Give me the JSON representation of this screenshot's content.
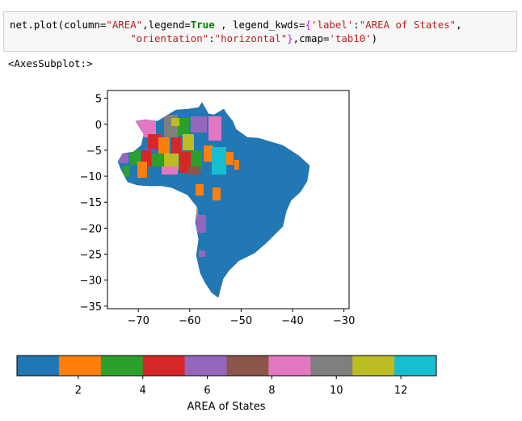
{
  "code_cell": {
    "line1": {
      "t1": "net.plot(column=",
      "s1": "\"AREA\"",
      "t2": ",legend=",
      "k1": "True",
      "t3": " , legend_kwds=",
      "o1": "{",
      "s2": "'label'",
      "t4": ":",
      "s3": "\"AREA of States\"",
      "t5": ","
    },
    "line2": {
      "indent": "                    ",
      "s4": "\"orientation\"",
      "t6": ":",
      "s5": "\"horizontal\"",
      "o2": "}",
      "t7": ",cmap=",
      "s6": "'tab10'",
      "t8": ")"
    }
  },
  "output_text": "<AxesSubplot:>",
  "chart_data": {
    "type": "choropleth map",
    "xlim": [
      -76,
      -29
    ],
    "ylim": [
      -35.5,
      6.5
    ],
    "x_ticks": [
      -70,
      -60,
      -50,
      -40,
      -30
    ],
    "x_tick_labels": [
      "−70",
      "−60",
      "−50",
      "−40",
      "−30"
    ],
    "y_ticks": [
      5,
      0,
      -5,
      -10,
      -15,
      -20,
      -25,
      -30,
      -35
    ],
    "y_tick_labels": [
      "5",
      "0",
      "−5",
      "−10",
      "−15",
      "−20",
      "−25",
      "−30",
      "−35"
    ],
    "colormap": [
      "#1f77b4",
      "#ff7f0e",
      "#2ca02c",
      "#d62728",
      "#9467bd",
      "#8c564b",
      "#e377c2",
      "#7f7f7f",
      "#bcbd22",
      "#17becf"
    ],
    "colorbar": {
      "orientation": "horizontal",
      "range": [
        0.1,
        13.1
      ],
      "ticks": [
        2,
        4,
        6,
        8,
        10,
        12
      ],
      "tick_labels": [
        "2",
        "4",
        "6",
        "8",
        "10",
        "12"
      ],
      "label": "AREA of States"
    }
  }
}
